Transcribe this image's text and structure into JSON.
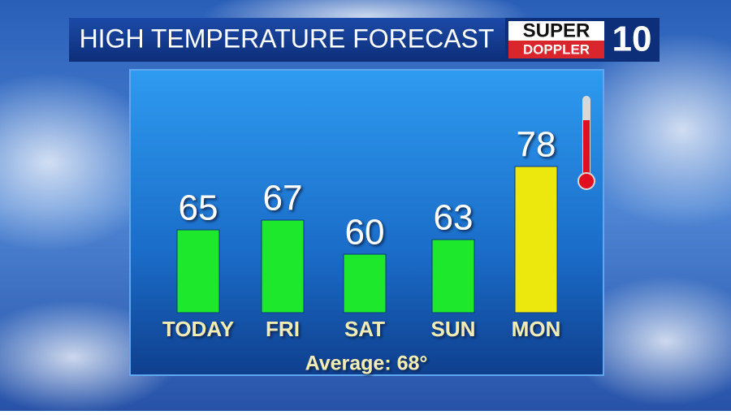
{
  "chart_data": {
    "type": "bar",
    "title": "HIGH TEMPERATURE FORECAST",
    "logo": {
      "top": "SUPER",
      "bottom": "DOPPLER",
      "number": "10"
    },
    "categories": [
      "TODAY",
      "FRI",
      "SAT",
      "SUN",
      "MON"
    ],
    "values": [
      65,
      67,
      60,
      63,
      78
    ],
    "colors": [
      "#1ee82c",
      "#1ee82c",
      "#1ee82c",
      "#1ee82c",
      "#ece80e"
    ],
    "ylim": [
      48,
      80
    ],
    "footer": "Average: 68°"
  }
}
